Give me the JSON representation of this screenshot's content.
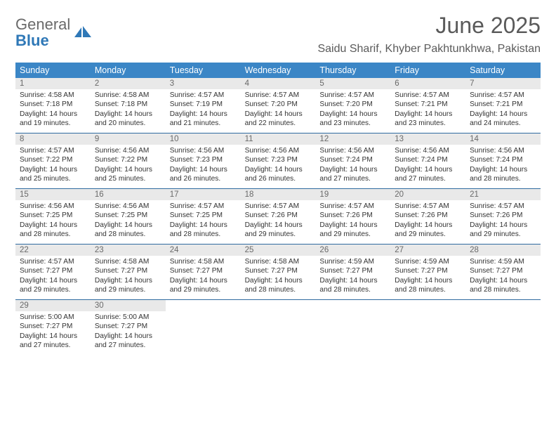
{
  "brand": {
    "part1": "General",
    "part2": "Blue"
  },
  "title": "June 2025",
  "location": "Saidu Sharif, Khyber Pakhtunkhwa, Pakistan",
  "colors": {
    "header_bg": "#3b86c6",
    "header_text": "#ffffff",
    "daynum_bg": "#e9e9e9",
    "daynum_text": "#6a6a6a",
    "week_border": "#2f6ba0",
    "body_text": "#333333",
    "title_text": "#5a5a5a",
    "logo_gray": "#6a6a6a",
    "logo_blue": "#2f78b7"
  },
  "weekdays": [
    "Sunday",
    "Monday",
    "Tuesday",
    "Wednesday",
    "Thursday",
    "Friday",
    "Saturday"
  ],
  "days": [
    {
      "n": "1",
      "sr": "4:58 AM",
      "ss": "7:18 PM",
      "dl": "14 hours and 19 minutes."
    },
    {
      "n": "2",
      "sr": "4:58 AM",
      "ss": "7:18 PM",
      "dl": "14 hours and 20 minutes."
    },
    {
      "n": "3",
      "sr": "4:57 AM",
      "ss": "7:19 PM",
      "dl": "14 hours and 21 minutes."
    },
    {
      "n": "4",
      "sr": "4:57 AM",
      "ss": "7:20 PM",
      "dl": "14 hours and 22 minutes."
    },
    {
      "n": "5",
      "sr": "4:57 AM",
      "ss": "7:20 PM",
      "dl": "14 hours and 23 minutes."
    },
    {
      "n": "6",
      "sr": "4:57 AM",
      "ss": "7:21 PM",
      "dl": "14 hours and 23 minutes."
    },
    {
      "n": "7",
      "sr": "4:57 AM",
      "ss": "7:21 PM",
      "dl": "14 hours and 24 minutes."
    },
    {
      "n": "8",
      "sr": "4:57 AM",
      "ss": "7:22 PM",
      "dl": "14 hours and 25 minutes."
    },
    {
      "n": "9",
      "sr": "4:56 AM",
      "ss": "7:22 PM",
      "dl": "14 hours and 25 minutes."
    },
    {
      "n": "10",
      "sr": "4:56 AM",
      "ss": "7:23 PM",
      "dl": "14 hours and 26 minutes."
    },
    {
      "n": "11",
      "sr": "4:56 AM",
      "ss": "7:23 PM",
      "dl": "14 hours and 26 minutes."
    },
    {
      "n": "12",
      "sr": "4:56 AM",
      "ss": "7:24 PM",
      "dl": "14 hours and 27 minutes."
    },
    {
      "n": "13",
      "sr": "4:56 AM",
      "ss": "7:24 PM",
      "dl": "14 hours and 27 minutes."
    },
    {
      "n": "14",
      "sr": "4:56 AM",
      "ss": "7:24 PM",
      "dl": "14 hours and 28 minutes."
    },
    {
      "n": "15",
      "sr": "4:56 AM",
      "ss": "7:25 PM",
      "dl": "14 hours and 28 minutes."
    },
    {
      "n": "16",
      "sr": "4:56 AM",
      "ss": "7:25 PM",
      "dl": "14 hours and 28 minutes."
    },
    {
      "n": "17",
      "sr": "4:57 AM",
      "ss": "7:25 PM",
      "dl": "14 hours and 28 minutes."
    },
    {
      "n": "18",
      "sr": "4:57 AM",
      "ss": "7:26 PM",
      "dl": "14 hours and 29 minutes."
    },
    {
      "n": "19",
      "sr": "4:57 AM",
      "ss": "7:26 PM",
      "dl": "14 hours and 29 minutes."
    },
    {
      "n": "20",
      "sr": "4:57 AM",
      "ss": "7:26 PM",
      "dl": "14 hours and 29 minutes."
    },
    {
      "n": "21",
      "sr": "4:57 AM",
      "ss": "7:26 PM",
      "dl": "14 hours and 29 minutes."
    },
    {
      "n": "22",
      "sr": "4:57 AM",
      "ss": "7:27 PM",
      "dl": "14 hours and 29 minutes."
    },
    {
      "n": "23",
      "sr": "4:58 AM",
      "ss": "7:27 PM",
      "dl": "14 hours and 29 minutes."
    },
    {
      "n": "24",
      "sr": "4:58 AM",
      "ss": "7:27 PM",
      "dl": "14 hours and 29 minutes."
    },
    {
      "n": "25",
      "sr": "4:58 AM",
      "ss": "7:27 PM",
      "dl": "14 hours and 28 minutes."
    },
    {
      "n": "26",
      "sr": "4:59 AM",
      "ss": "7:27 PM",
      "dl": "14 hours and 28 minutes."
    },
    {
      "n": "27",
      "sr": "4:59 AM",
      "ss": "7:27 PM",
      "dl": "14 hours and 28 minutes."
    },
    {
      "n": "28",
      "sr": "4:59 AM",
      "ss": "7:27 PM",
      "dl": "14 hours and 28 minutes."
    },
    {
      "n": "29",
      "sr": "5:00 AM",
      "ss": "7:27 PM",
      "dl": "14 hours and 27 minutes."
    },
    {
      "n": "30",
      "sr": "5:00 AM",
      "ss": "7:27 PM",
      "dl": "14 hours and 27 minutes."
    }
  ],
  "labels": {
    "sunrise": "Sunrise: ",
    "sunset": "Sunset: ",
    "daylight": "Daylight: "
  }
}
